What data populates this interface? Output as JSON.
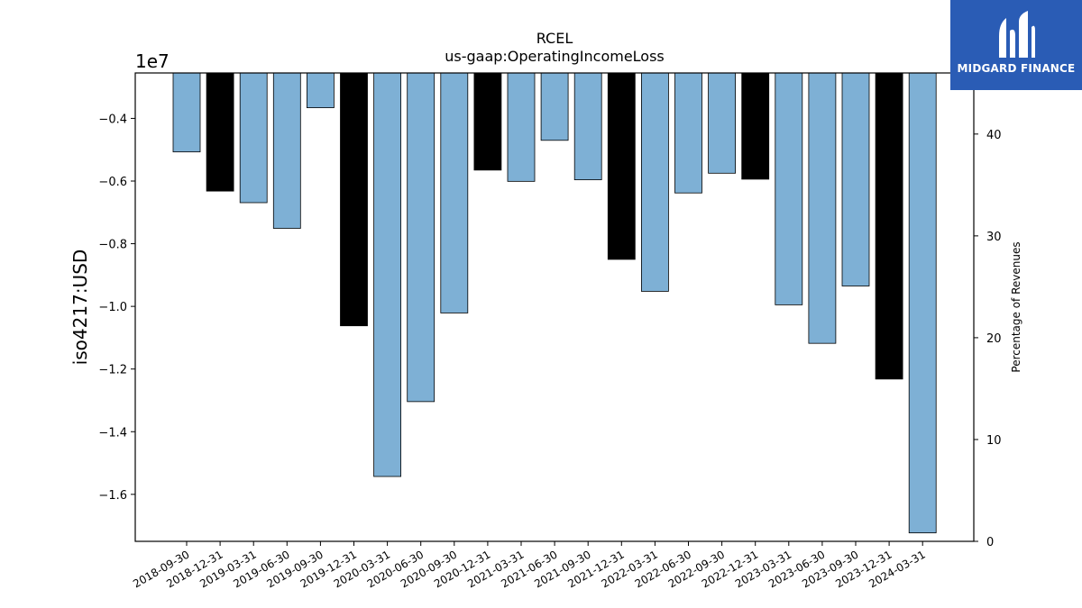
{
  "chart_data": {
    "type": "bar",
    "title": "RCEL",
    "subtitle": "us-gaap:OperatingIncomeLoss",
    "ylabel": "iso4217:USD",
    "y_offset_label": "1e7",
    "y2label": "Percentage of Revenues",
    "ylim": [
      -1.75,
      -0.255
    ],
    "y_unit_multiplier": 10000000,
    "yticks": [
      -0.4,
      -0.6,
      -0.8,
      -1.0,
      -1.2,
      -1.4,
      -1.6
    ],
    "ytick_labels": [
      "−0.4",
      "−0.6",
      "−0.8",
      "−1.0",
      "−1.2",
      "−1.4",
      "−1.6"
    ],
    "y2lim": [
      0,
      46
    ],
    "y2ticks": [
      0,
      10,
      20,
      30,
      40
    ],
    "categories": [
      "2018-09-30",
      "2018-12-31",
      "2019-03-31",
      "2019-06-30",
      "2019-09-30",
      "2019-12-31",
      "2020-03-31",
      "2020-06-30",
      "2020-09-30",
      "2020-12-31",
      "2021-03-31",
      "2021-06-30",
      "2021-09-30",
      "2021-12-31",
      "2022-03-31",
      "2022-06-30",
      "2022-09-30",
      "2022-12-31",
      "2023-03-31",
      "2023-06-30",
      "2023-09-30",
      "2023-12-31",
      "2024-03-31"
    ],
    "values": [
      -0.507,
      -0.632,
      -0.669,
      -0.751,
      -0.366,
      -1.062,
      -1.543,
      -1.304,
      -1.021,
      -0.565,
      -0.601,
      -0.47,
      -0.596,
      -0.85,
      -0.952,
      -0.638,
      -0.575,
      -0.594,
      -0.995,
      -1.118,
      -0.935,
      -1.232,
      -1.723
    ],
    "colors": [
      "#7eb0d5",
      "#000000",
      "#7eb0d5",
      "#7eb0d5",
      "#7eb0d5",
      "#000000",
      "#7eb0d5",
      "#7eb0d5",
      "#7eb0d5",
      "#000000",
      "#7eb0d5",
      "#7eb0d5",
      "#7eb0d5",
      "#000000",
      "#7eb0d5",
      "#7eb0d5",
      "#7eb0d5",
      "#000000",
      "#7eb0d5",
      "#7eb0d5",
      "#7eb0d5",
      "#000000",
      "#7eb0d5"
    ],
    "grid": false
  },
  "logo": {
    "text": "MIDGARD FINANCE",
    "color": "#2a5cb5"
  }
}
